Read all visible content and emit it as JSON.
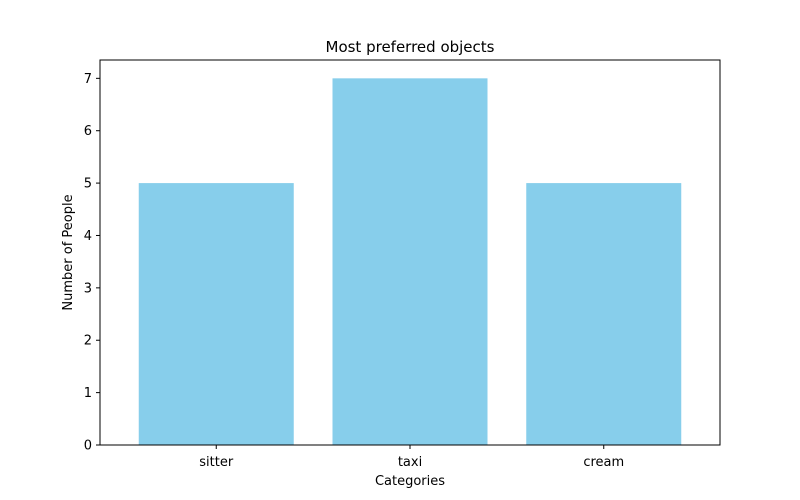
{
  "chart_data": {
    "type": "bar",
    "title": "Most preferred objects",
    "xlabel": "Categories",
    "ylabel": "Number of People",
    "categories": [
      "sitter",
      "taxi",
      "cream"
    ],
    "values": [
      5,
      7,
      5
    ],
    "ylim": [
      0,
      7.35
    ],
    "yticks": [
      0,
      1,
      2,
      3,
      4,
      5,
      6,
      7
    ],
    "bar_color": "#87ceeb",
    "grid": false,
    "legend": "none"
  }
}
